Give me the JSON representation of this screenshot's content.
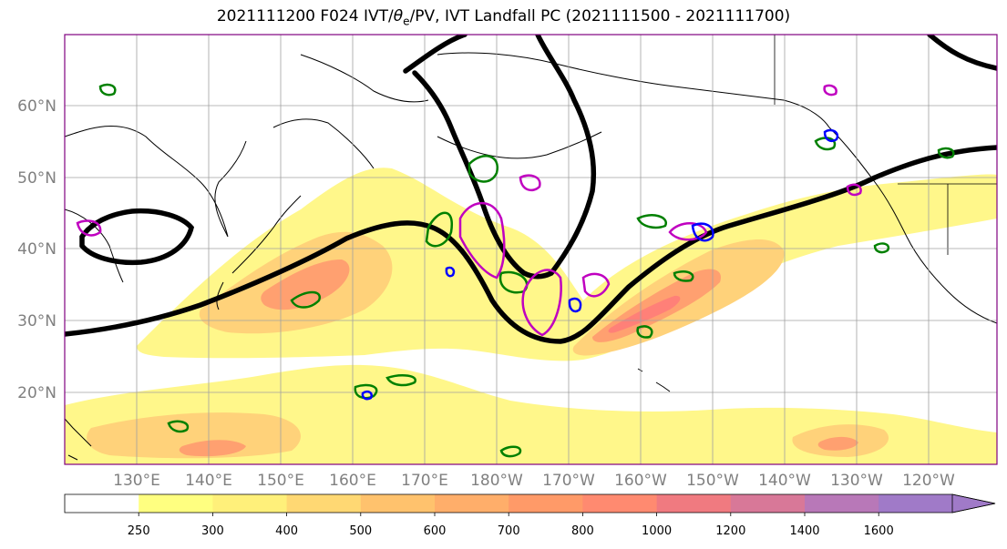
{
  "title": {
    "prefix": "2021111200 F024 IVT/",
    "theta": "θ",
    "theta_sub": "e",
    "suffix": "/PV, IVT Landfall PC (2021111500 - 2021111700)"
  },
  "lat_labels": [
    "60°N",
    "50°N",
    "40°N",
    "30°N",
    "20°N"
  ],
  "lon_labels": [
    "130°E",
    "140°E",
    "150°E",
    "160°E",
    "170°E",
    "180°W",
    "170°W",
    "160°W",
    "150°W",
    "140°W",
    "130°W",
    "120°W"
  ],
  "colorbar": {
    "ticks": [
      "250",
      "300",
      "400",
      "500",
      "600",
      "700",
      "800",
      "1000",
      "1200",
      "1400",
      "1600"
    ],
    "colors": [
      "#ffffff",
      "#ffff80",
      "#fff07a",
      "#ffd873",
      "#ffc26d",
      "#ffae6a",
      "#ff9a68",
      "#ff8a70",
      "#f07a80",
      "#d87898",
      "#b878b8",
      "#a07ac8"
    ]
  },
  "colors": {
    "ivt_low": "#fff78a",
    "ivt_mid": "#ffd27a",
    "ivt_high": "#ffa070",
    "ivt_max": "#ff8078",
    "contour_black": "#000000",
    "contour_green": "#008000",
    "contour_magenta": "#c000c0",
    "contour_blue": "#0000ff",
    "grid": "#a0a0a0",
    "frame": "#800080"
  }
}
